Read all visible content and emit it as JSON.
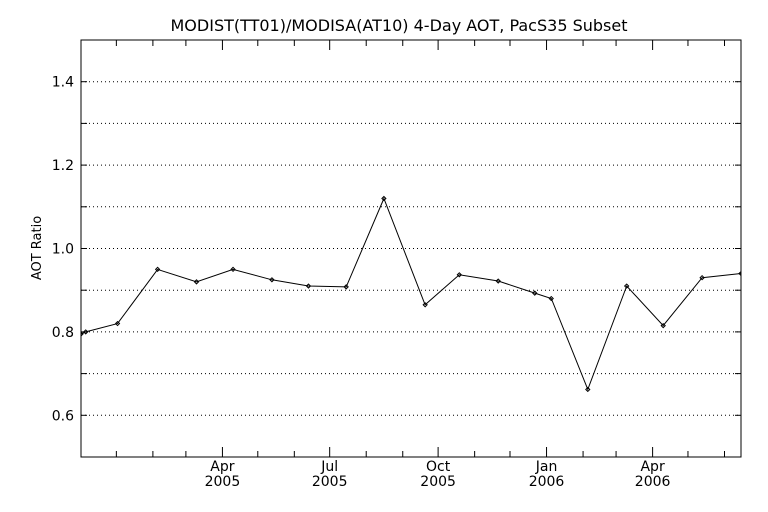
{
  "chart_data": {
    "type": "line",
    "title": "MODIST(TT01)/MODISA(AT10) 4-Day AOT, PacS35 Subset",
    "xlabel": "",
    "ylabel": "AOT Ratio",
    "xlim": [
      "2004-12-02",
      "2006-06-15"
    ],
    "ylim": [
      0.5,
      1.5
    ],
    "y_ticks": [
      0.6,
      0.8,
      1.0,
      1.2,
      1.4
    ],
    "y_tick_labels": [
      "0.6",
      "0.8",
      "1.0",
      "1.2",
      "1.4"
    ],
    "x_ticks": [
      {
        "date": "2005-04-01",
        "month": "Apr",
        "year": "2005"
      },
      {
        "date": "2005-07-01",
        "month": "Jul",
        "year": "2005"
      },
      {
        "date": "2005-10-01",
        "month": "Oct",
        "year": "2005"
      },
      {
        "date": "2006-01-01",
        "month": "Jan",
        "year": "2006"
      },
      {
        "date": "2006-04-01",
        "month": "Apr",
        "year": "2006"
      }
    ],
    "grid": "horizontal-dotted",
    "series": [
      {
        "x": [
          "2004-12-02",
          "2004-12-06",
          "2005-01-02",
          "2005-02-05",
          "2005-03-10",
          "2005-04-10",
          "2005-05-13",
          "2005-06-13",
          "2005-07-15",
          "2005-08-16",
          "2005-09-20",
          "2005-10-19",
          "2005-11-21",
          "2005-12-22",
          "2006-01-05",
          "2006-02-05",
          "2006-03-10",
          "2006-04-10",
          "2006-05-13",
          "2006-06-15"
        ],
        "y": [
          0.795,
          0.8,
          0.82,
          0.95,
          0.92,
          0.95,
          0.925,
          0.91,
          0.908,
          1.12,
          0.865,
          0.937,
          0.922,
          0.893,
          0.88,
          0.662,
          0.91,
          0.815,
          0.93,
          0.94
        ]
      }
    ]
  },
  "colors": {
    "line": "#000000",
    "grid": "#000000",
    "background": "#ffffff"
  }
}
